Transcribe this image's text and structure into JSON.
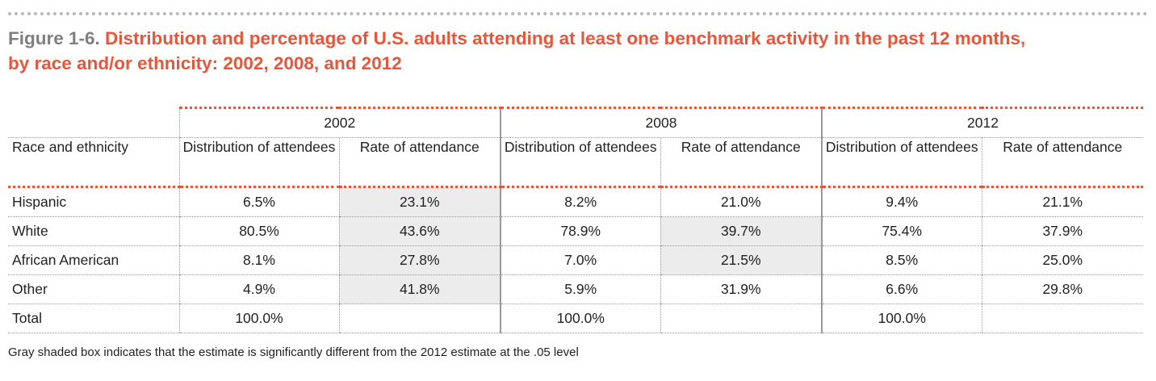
{
  "figure": {
    "label": "Figure 1-6.",
    "title_line1": "Distribution and percentage of U.S. adults attending at least one benchmark activity in the past 12 months,",
    "title_line2": "by race and/or ethnicity: 2002, 2008, and 2012"
  },
  "table": {
    "years": [
      "2002",
      "2008",
      "2012"
    ],
    "row_header": "Race and ethnicity",
    "col_distribution": "Distribution of attendees",
    "col_rate": "Rate of attendance",
    "rows": [
      {
        "label": "Hispanic",
        "d2002": "6.5%",
        "r2002": "23.1%",
        "d2008": "8.2%",
        "r2008": "21.0%",
        "d2012": "9.4%",
        "r2012": "21.1%"
      },
      {
        "label": "White",
        "d2002": "80.5%",
        "r2002": "43.6%",
        "d2008": "78.9%",
        "r2008": "39.7%",
        "d2012": "75.4%",
        "r2012": "37.9%"
      },
      {
        "label": "African American",
        "d2002": "8.1%",
        "r2002": "27.8%",
        "d2008": "7.0%",
        "r2008": "21.5%",
        "d2012": "8.5%",
        "r2012": "25.0%"
      },
      {
        "label": "Other",
        "d2002": "4.9%",
        "r2002": "41.8%",
        "d2008": "5.9%",
        "r2008": "31.9%",
        "d2012": "6.6%",
        "r2012": "29.8%"
      },
      {
        "label": "Total",
        "d2002": "100.0%",
        "r2002": "",
        "d2008": "100.0%",
        "r2008": "",
        "d2012": "100.0%",
        "r2012": ""
      }
    ],
    "shaded_color": "#ececec"
  },
  "colors": {
    "title_accent": "#e8553a",
    "figure_label": "#7f7f7f",
    "rule_gray": "#b8b8b8"
  },
  "footnote": "Gray shaded box indicates that the estimate is significantly different from the 2012 estimate at the .05 level"
}
